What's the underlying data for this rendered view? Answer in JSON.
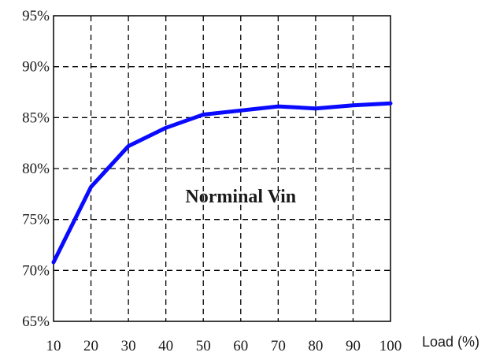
{
  "chart_data": {
    "type": "line",
    "title": "",
    "xlabel": "Load (%)",
    "ylabel": "",
    "x": [
      10,
      20,
      30,
      40,
      50,
      60,
      70,
      80,
      90,
      100
    ],
    "xlim": [
      10,
      100
    ],
    "ylim": [
      65,
      95
    ],
    "x_ticks": [
      "10",
      "20",
      "30",
      "40",
      "50",
      "60",
      "70",
      "80",
      "90",
      "100"
    ],
    "y_ticks": [
      "65%",
      "70%",
      "75%",
      "80%",
      "85%",
      "90%",
      "95%"
    ],
    "grid": true,
    "annotation": "Norminal Vin",
    "series": [
      {
        "color": "#0a0aff",
        "values": [
          70.8,
          78.2,
          82.2,
          84.0,
          85.3,
          85.7,
          86.1,
          85.9,
          86.2,
          86.4
        ]
      }
    ]
  }
}
